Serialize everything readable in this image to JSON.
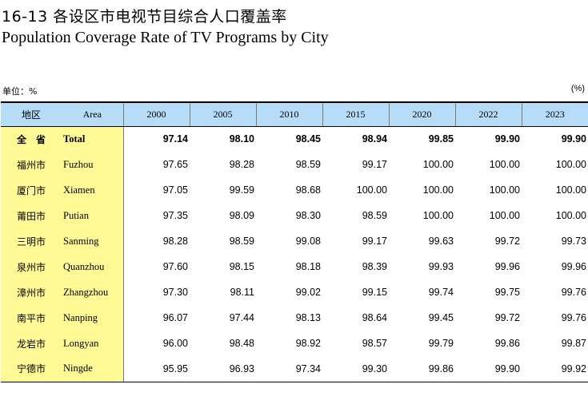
{
  "title_cn": "16-13 各设区市电视节目综合人口覆盖率",
  "title_en": "Population Coverage Rate of TV Programs by City",
  "unit_left": "单位：%",
  "unit_right": "(%)",
  "header": {
    "region_cn": "地区",
    "region_en": "Area",
    "years": [
      "2000",
      "2005",
      "2010",
      "2015",
      "2020",
      "2022",
      "2023"
    ]
  },
  "rows": [
    {
      "cn": "全　省",
      "en": "Total",
      "values": [
        "97.14",
        "98.10",
        "98.45",
        "98.94",
        "99.85",
        "99.90",
        "99.90"
      ]
    },
    {
      "cn": "福州市",
      "en": "Fuzhou",
      "values": [
        "97.65",
        "98.28",
        "98.59",
        "99.17",
        "100.00",
        "100.00",
        "100.00"
      ]
    },
    {
      "cn": "厦门市",
      "en": "Xiamen",
      "values": [
        "97.05",
        "99.59",
        "98.68",
        "100.00",
        "100.00",
        "100.00",
        "100.00"
      ]
    },
    {
      "cn": "莆田市",
      "en": "Putian",
      "values": [
        "97.35",
        "98.09",
        "98.30",
        "98.59",
        "100.00",
        "100.00",
        "100.00"
      ]
    },
    {
      "cn": "三明市",
      "en": "Sanming",
      "values": [
        "98.28",
        "98.59",
        "99.08",
        "99.17",
        "99.63",
        "99.72",
        "99.73"
      ]
    },
    {
      "cn": "泉州市",
      "en": "Quanzhou",
      "values": [
        "97.60",
        "98.15",
        "98.18",
        "98.39",
        "99.93",
        "99.96",
        "99.96"
      ]
    },
    {
      "cn": "漳州市",
      "en": "Zhangzhou",
      "values": [
        "97.30",
        "98.11",
        "99.02",
        "99.15",
        "99.74",
        "99.75",
        "99.76"
      ]
    },
    {
      "cn": "南平市",
      "en": "Nanping",
      "values": [
        "96.07",
        "97.44",
        "98.13",
        "98.64",
        "99.45",
        "99.72",
        "99.76"
      ]
    },
    {
      "cn": "龙岩市",
      "en": "Longyan",
      "values": [
        "96.00",
        "98.48",
        "98.92",
        "98.57",
        "99.79",
        "99.86",
        "99.87"
      ]
    },
    {
      "cn": "宁德市",
      "en": "Ningde",
      "values": [
        "95.95",
        "96.93",
        "97.34",
        "99.30",
        "99.86",
        "99.90",
        "99.92"
      ]
    }
  ]
}
